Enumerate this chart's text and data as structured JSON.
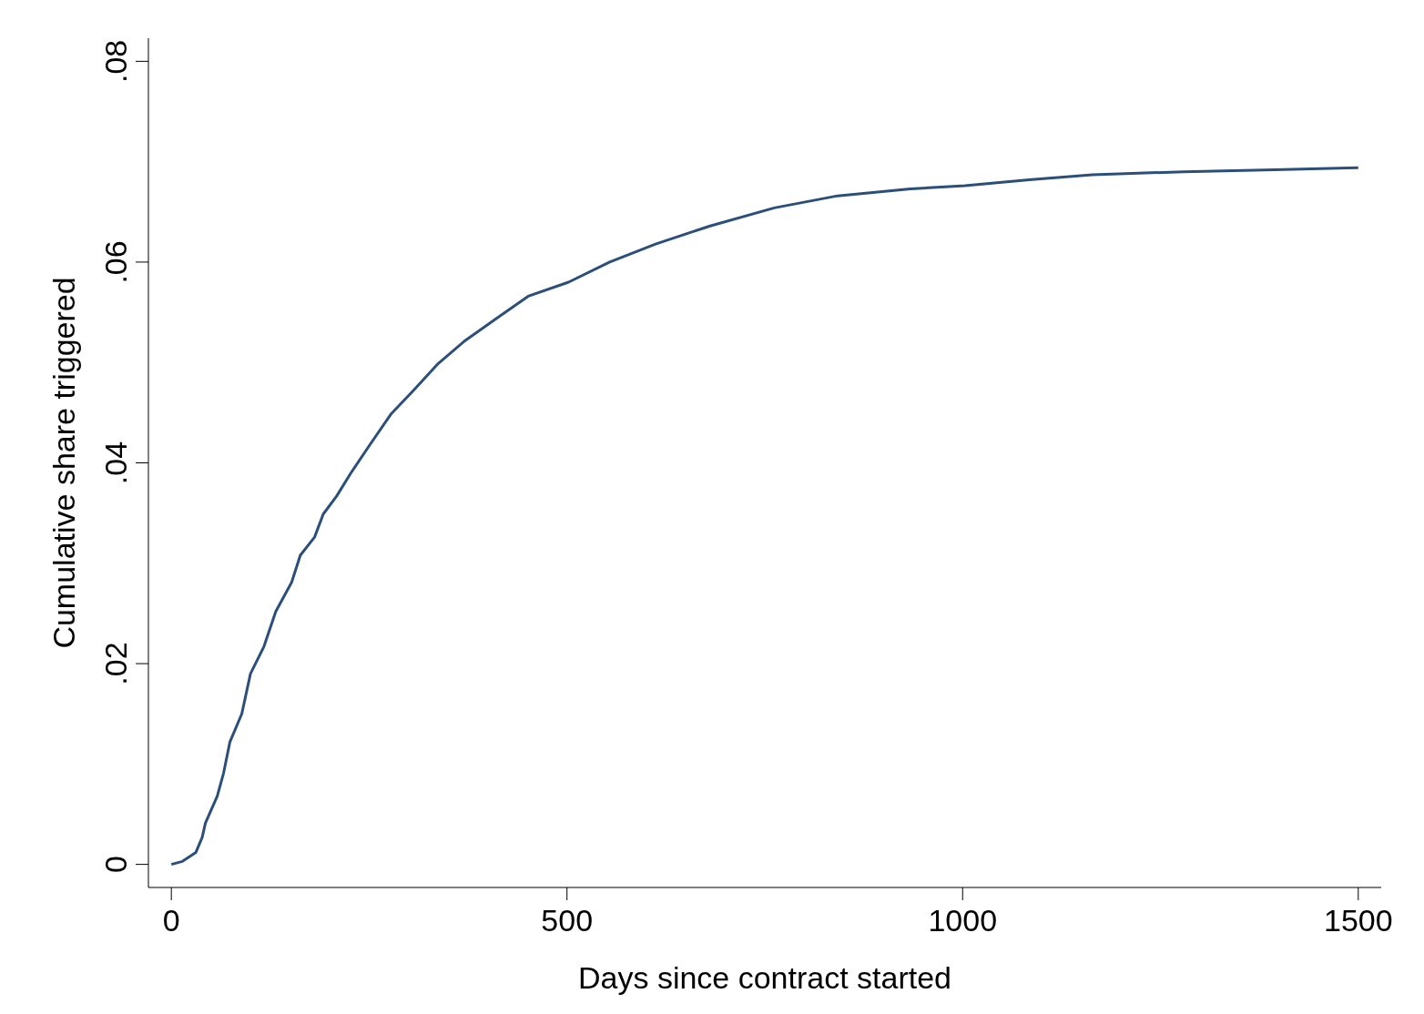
{
  "chart_data": {
    "type": "line",
    "xlabel": "Days since contract started",
    "ylabel": "Cumulative share triggered",
    "x": [
      0,
      14,
      31,
      39,
      43,
      58,
      66,
      74,
      89,
      100,
      117,
      132,
      152,
      163,
      181,
      192,
      209,
      227,
      250,
      278,
      307,
      336,
      370,
      411,
      451,
      502,
      554,
      612,
      681,
      762,
      842,
      934,
      1003,
      1084,
      1164,
      1279,
      1394,
      1500
    ],
    "series": [
      {
        "color": "#2b4f7a",
        "values": [
          0,
          0.0003,
          0.0012,
          0.0027,
          0.0041,
          0.0068,
          0.0091,
          0.0122,
          0.015,
          0.019,
          0.0217,
          0.0252,
          0.0281,
          0.0308,
          0.0326,
          0.0349,
          0.0367,
          0.039,
          0.0417,
          0.0449,
          0.0473,
          0.0498,
          0.0521,
          0.0544,
          0.0566,
          0.058,
          0.06,
          0.0618,
          0.0636,
          0.0654,
          0.0666,
          0.0673,
          0.0676,
          0.0682,
          0.0687,
          0.069,
          0.0692,
          0.0694
        ]
      }
    ],
    "xlim": [
      -29,
      1529
    ],
    "xticks": [
      0,
      500,
      1000,
      1500
    ],
    "ylim": [
      -0.0023,
      0.0823
    ],
    "yticks": [
      {
        "value": 0,
        "label": "0"
      },
      {
        "value": 0.02,
        "label": ".02"
      },
      {
        "value": 0.04,
        "label": ".04"
      },
      {
        "value": 0.06,
        "label": ".06"
      },
      {
        "value": 0.08,
        "label": ".08"
      }
    ],
    "grid": false,
    "legend": false,
    "marker": "none",
    "line_style": "solid"
  }
}
